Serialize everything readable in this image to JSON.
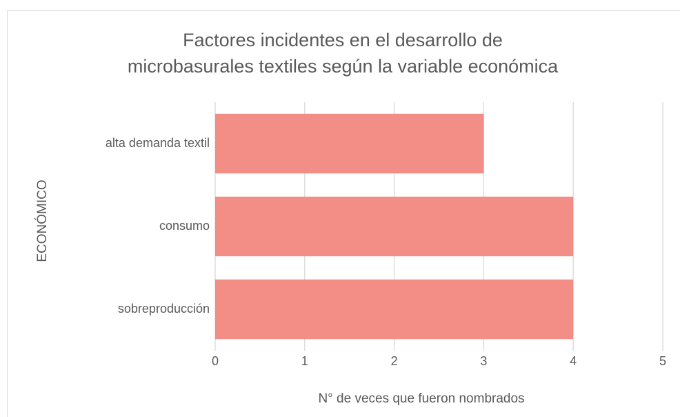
{
  "chart_data": {
    "type": "bar",
    "orientation": "horizontal",
    "title": [
      "Factores incidentes en el desarrollo de",
      "microbasurales textiles según la variable económica"
    ],
    "y_label": "ECONÓMICO",
    "x_label": "N° de veces que fueron nombrados",
    "categories": [
      "alta demanda textil",
      "consumo",
      "sobreproducción"
    ],
    "values": [
      3,
      4,
      4
    ],
    "color": "#f28e86",
    "xlim": [
      0,
      5
    ],
    "xticks": [
      0,
      1,
      2,
      3,
      4,
      5
    ],
    "grid": true
  }
}
